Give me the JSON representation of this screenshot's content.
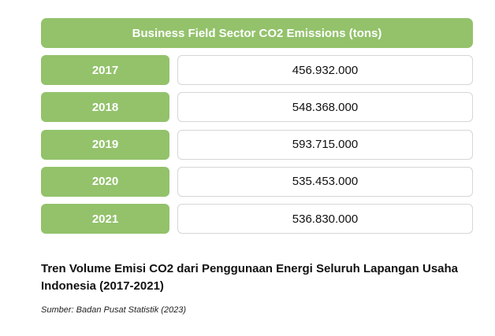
{
  "chart_data": {
    "type": "table",
    "title": "Business Field Sector CO2 Emissions (tons)",
    "categories": [
      "2017",
      "2018",
      "2019",
      "2020",
      "2021"
    ],
    "values": [
      456932000,
      548368000,
      593715000,
      535453000,
      536830000
    ],
    "value_labels": [
      "456.932.000",
      "548.368.000",
      "593.715.000",
      "535.453.000",
      "536.830.000"
    ],
    "caption": "Tren Volume Emisi CO2 dari Penggunaan Energi Seluruh Lapangan Usaha Indonesia (2017-2021)",
    "source": "Sumber: Badan Pusat Statistik (2023)"
  },
  "colors": {
    "accent": "#93c26b",
    "border": "#d6d6d6"
  }
}
